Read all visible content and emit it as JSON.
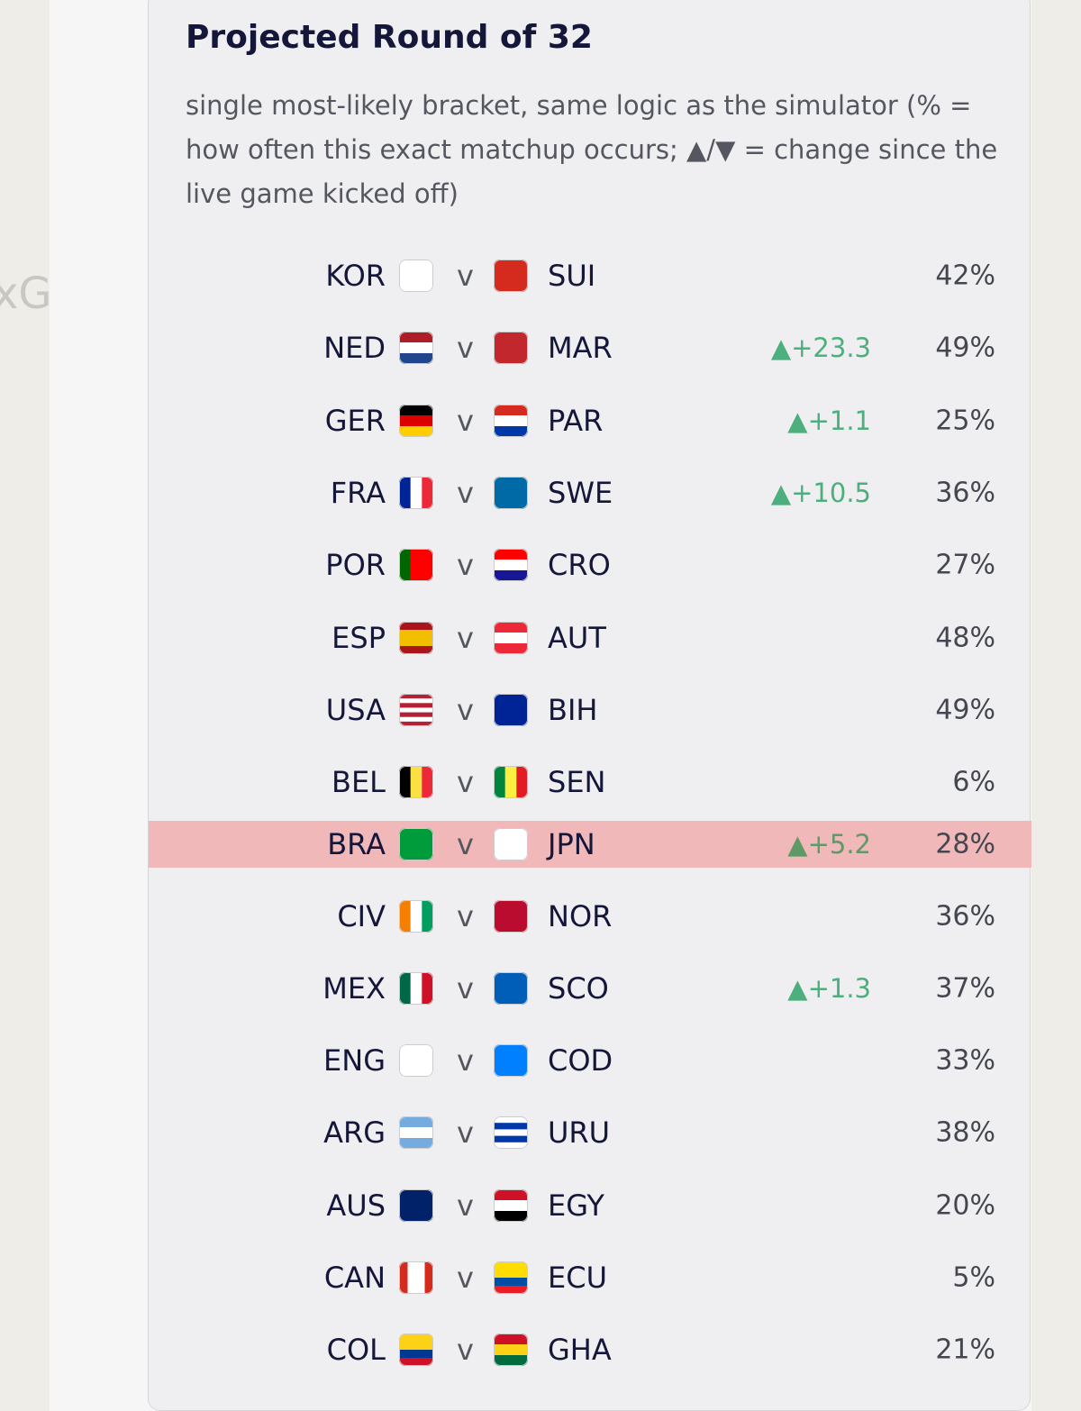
{
  "background_label": "xG",
  "title": "Projected Round of 32",
  "subtitle": "single most-likely bracket, same logic as the simulator (% = how often this exact matchup occurs; ▲/▼ = change since the live game kicked off)",
  "separator": "v",
  "rows": [
    {
      "home": "KOR",
      "away": "SUI",
      "probability": "42%"
    },
    {
      "home": "NED",
      "away": "MAR",
      "change": "▲+23.3",
      "probability": "49%"
    },
    {
      "home": "GER",
      "away": "PAR",
      "change": "▲+1.1",
      "probability": "25%"
    },
    {
      "home": "FRA",
      "away": "SWE",
      "change": "▲+10.5",
      "probability": "36%"
    },
    {
      "home": "POR",
      "away": "CRO",
      "probability": "27%"
    },
    {
      "home": "ESP",
      "away": "AUT",
      "probability": "48%"
    },
    {
      "home": "USA",
      "away": "BIH",
      "probability": "49%"
    },
    {
      "home": "BEL",
      "away": "SEN",
      "probability": "6%"
    },
    {
      "home": "BRA",
      "away": "JPN",
      "change": "▲+5.2",
      "probability": "28%",
      "highlight": true
    },
    {
      "home": "CIV",
      "away": "NOR",
      "probability": "36%"
    },
    {
      "home": "MEX",
      "away": "SCO",
      "change": "▲+1.3",
      "probability": "37%"
    },
    {
      "home": "ENG",
      "away": "COD",
      "probability": "33%"
    },
    {
      "home": "ARG",
      "away": "URU",
      "probability": "38%"
    },
    {
      "home": "AUS",
      "away": "EGY",
      "probability": "20%"
    },
    {
      "home": "CAN",
      "away": "ECU",
      "probability": "5%"
    },
    {
      "home": "COL",
      "away": "GHA",
      "probability": "21%"
    }
  ]
}
